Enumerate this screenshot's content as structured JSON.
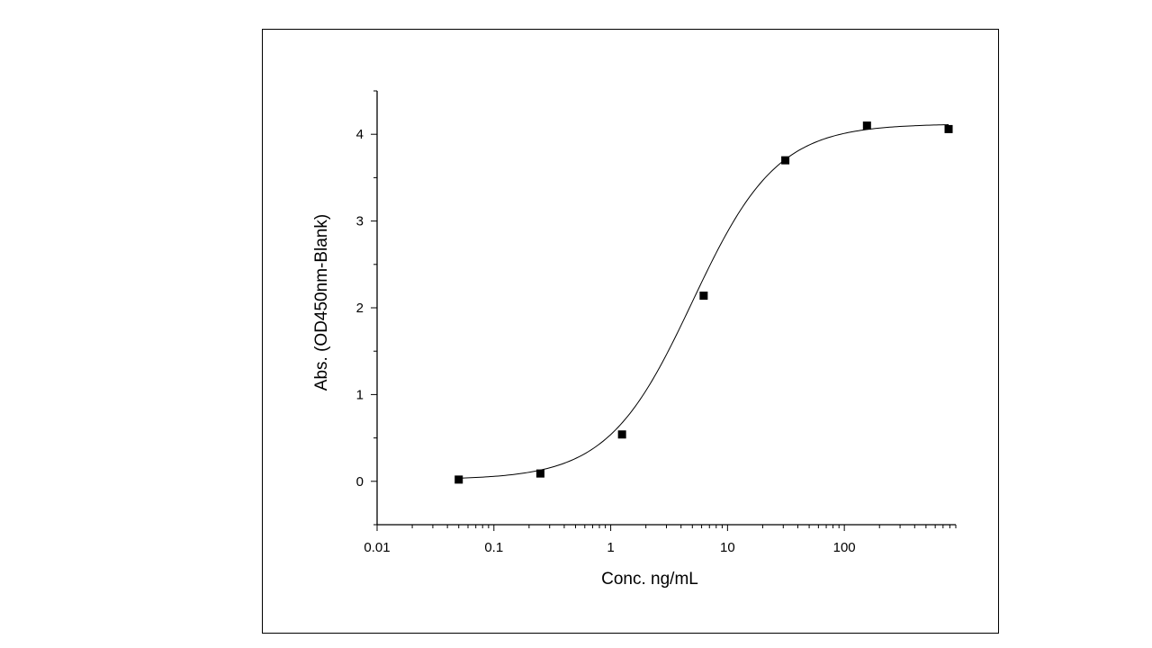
{
  "chart_data": {
    "type": "scatter",
    "title": "",
    "xlabel": "Conc. ng/mL",
    "ylabel": "Abs. (OD450nm-Blank)",
    "xscale": "log",
    "xlim": [
      0.01,
      900
    ],
    "ylim": [
      -0.5,
      4.5
    ],
    "xticks": [
      {
        "value": 0.01,
        "label": "0.01"
      },
      {
        "value": 0.1,
        "label": "0.1"
      },
      {
        "value": 1,
        "label": "1"
      },
      {
        "value": 10,
        "label": "10"
      },
      {
        "value": 100,
        "label": "100"
      }
    ],
    "yticks": [
      {
        "value": 0,
        "label": "0"
      },
      {
        "value": 1,
        "label": "1"
      },
      {
        "value": 2,
        "label": "2"
      },
      {
        "value": 3,
        "label": "3"
      },
      {
        "value": 4,
        "label": "4"
      }
    ],
    "grid": false,
    "legend": "none",
    "series": [
      {
        "marker": "square",
        "color": "#000000",
        "x": [
          0.05,
          0.25,
          1.25,
          6.25,
          31.25,
          156.25,
          781.25
        ],
        "y": [
          0.02,
          0.09,
          0.54,
          2.14,
          3.7,
          4.1,
          4.06
        ]
      }
    ],
    "fit": {
      "type": "4PL sigmoid",
      "color": "#000000",
      "x_range": [
        0.05,
        781.25
      ]
    }
  }
}
